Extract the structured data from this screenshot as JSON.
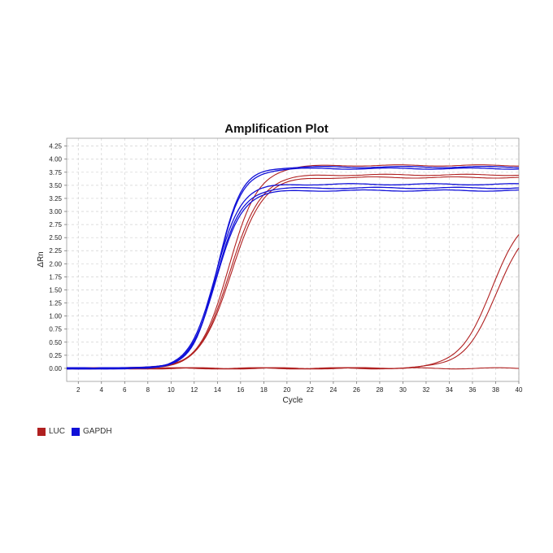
{
  "chart_data": {
    "type": "line",
    "title": "Amplification Plot",
    "xlabel": "Cycle",
    "ylabel": "ΔRn",
    "xlim": [
      1,
      40
    ],
    "ylim": [
      -0.25,
      4.4
    ],
    "grid": true,
    "legend_position": "bottom-left",
    "x_ticks": [
      "2",
      "4",
      "6",
      "8",
      "10",
      "12",
      "14",
      "16",
      "18",
      "20",
      "22",
      "24",
      "26",
      "28",
      "30",
      "32",
      "34",
      "36",
      "38",
      "40"
    ],
    "y_ticks": [
      "0.00",
      "0.25",
      "0.50",
      "0.75",
      "1.00",
      "1.25",
      "1.50",
      "1.75",
      "2.00",
      "2.25",
      "2.50",
      "2.75",
      "3.00",
      "3.25",
      "3.50",
      "3.75",
      "4.00",
      "4.25"
    ],
    "colors": {
      "LUC": "#b02020",
      "GAPDH": "#1010d8"
    },
    "legend": [
      {
        "name": "LUC",
        "color": "#b02020"
      },
      {
        "name": "GAPDH",
        "color": "#1010d8"
      }
    ],
    "series": [
      {
        "name": "GAPDH",
        "group": "GAPDH",
        "ct": 14.0,
        "plateau": 3.85,
        "slope": 0.95
      },
      {
        "name": "GAPDH",
        "group": "GAPDH",
        "ct": 14.0,
        "plateau": 3.82,
        "slope": 0.93
      },
      {
        "name": "GAPDH",
        "group": "GAPDH",
        "ct": 13.9,
        "plateau": 3.45,
        "slope": 0.92
      },
      {
        "name": "GAPDH",
        "group": "GAPDH",
        "ct": 13.9,
        "plateau": 3.4,
        "slope": 0.9
      },
      {
        "name": "GAPDH",
        "group": "GAPDH",
        "ct": 13.8,
        "plateau": 3.52,
        "slope": 0.92
      },
      {
        "name": "LUC",
        "group": "LUC",
        "ct": 15.0,
        "plateau": 3.88,
        "slope": 0.78
      },
      {
        "name": "LUC",
        "group": "LUC",
        "ct": 15.1,
        "plateau": 3.7,
        "slope": 0.76
      },
      {
        "name": "LUC",
        "group": "LUC",
        "ct": 15.2,
        "plateau": 3.65,
        "slope": 0.75
      },
      {
        "name": "LUC",
        "group": "LUC",
        "ct": 37.6,
        "plateau": 3.0,
        "slope": 0.72
      },
      {
        "name": "LUC",
        "group": "LUC",
        "ct": 38.1,
        "plateau": 2.9,
        "slope": 0.7
      },
      {
        "name": "LUC",
        "group": "LUC",
        "ct": 60,
        "plateau": 0.0,
        "slope": 0.5
      }
    ]
  }
}
